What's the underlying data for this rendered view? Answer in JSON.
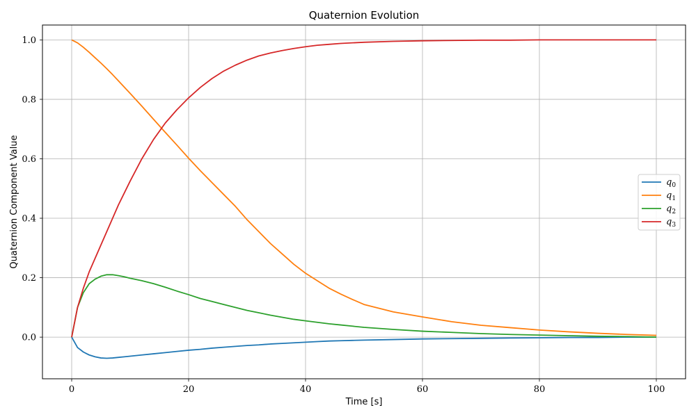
{
  "chart_data": {
    "type": "line",
    "title": "Quaternion Evolution",
    "xlabel": "Time [s]",
    "ylabel": "Quaternion Component Value",
    "xlim": [
      -5,
      105
    ],
    "ylim": [
      -0.14,
      1.05
    ],
    "xticks": [
      0,
      20,
      40,
      60,
      80,
      100
    ],
    "yticks": [
      0.0,
      0.2,
      0.4,
      0.6,
      0.8,
      1.0
    ],
    "grid": true,
    "legend_position": "center-right",
    "x": [
      0,
      1,
      2,
      3,
      4,
      5,
      6,
      7,
      8,
      9,
      10,
      12,
      14,
      16,
      18,
      20,
      22,
      24,
      26,
      28,
      30,
      32,
      34,
      36,
      38,
      40,
      42,
      44,
      46,
      48,
      50,
      55,
      60,
      65,
      70,
      75,
      80,
      85,
      90,
      95,
      100
    ],
    "series": [
      {
        "name": "q0",
        "subscript": "0",
        "color": "#1f77b4",
        "values": [
          0.0,
          -0.035,
          -0.05,
          -0.06,
          -0.066,
          -0.07,
          -0.071,
          -0.07,
          -0.068,
          -0.066,
          -0.064,
          -0.06,
          -0.056,
          -0.052,
          -0.048,
          -0.044,
          -0.041,
          -0.037,
          -0.034,
          -0.031,
          -0.028,
          -0.026,
          -0.023,
          -0.021,
          -0.019,
          -0.017,
          -0.015,
          -0.013,
          -0.012,
          -0.011,
          -0.01,
          -0.008,
          -0.006,
          -0.005,
          -0.004,
          -0.003,
          -0.002,
          -0.001,
          -0.001,
          0.0,
          0.0
        ]
      },
      {
        "name": "q1",
        "subscript": "1",
        "color": "#ff7f0e",
        "values": [
          1.0,
          0.99,
          0.975,
          0.958,
          0.94,
          0.922,
          0.903,
          0.883,
          0.862,
          0.841,
          0.82,
          0.777,
          0.733,
          0.689,
          0.646,
          0.602,
          0.56,
          0.52,
          0.48,
          0.44,
          0.395,
          0.355,
          0.315,
          0.28,
          0.245,
          0.215,
          0.19,
          0.165,
          0.145,
          0.127,
          0.11,
          0.085,
          0.068,
          0.052,
          0.04,
          0.032,
          0.024,
          0.018,
          0.013,
          0.009,
          0.006
        ]
      },
      {
        "name": "q2",
        "subscript": "2",
        "color": "#2ca02c",
        "values": [
          0.0,
          0.1,
          0.15,
          0.18,
          0.195,
          0.205,
          0.21,
          0.21,
          0.207,
          0.203,
          0.198,
          0.19,
          0.18,
          0.168,
          0.155,
          0.143,
          0.13,
          0.12,
          0.11,
          0.1,
          0.09,
          0.082,
          0.074,
          0.067,
          0.06,
          0.055,
          0.05,
          0.045,
          0.041,
          0.037,
          0.033,
          0.026,
          0.02,
          0.016,
          0.012,
          0.009,
          0.007,
          0.005,
          0.003,
          0.002,
          0.0
        ]
      },
      {
        "name": "q3",
        "subscript": "3",
        "color": "#d62728",
        "values": [
          0.0,
          0.1,
          0.165,
          0.22,
          0.265,
          0.31,
          0.355,
          0.4,
          0.445,
          0.485,
          0.525,
          0.6,
          0.665,
          0.72,
          0.765,
          0.805,
          0.84,
          0.87,
          0.895,
          0.915,
          0.932,
          0.946,
          0.956,
          0.964,
          0.971,
          0.977,
          0.982,
          0.985,
          0.988,
          0.99,
          0.992,
          0.995,
          0.997,
          0.998,
          0.999,
          0.999,
          1.0,
          1.0,
          1.0,
          1.0,
          1.0
        ]
      }
    ]
  }
}
